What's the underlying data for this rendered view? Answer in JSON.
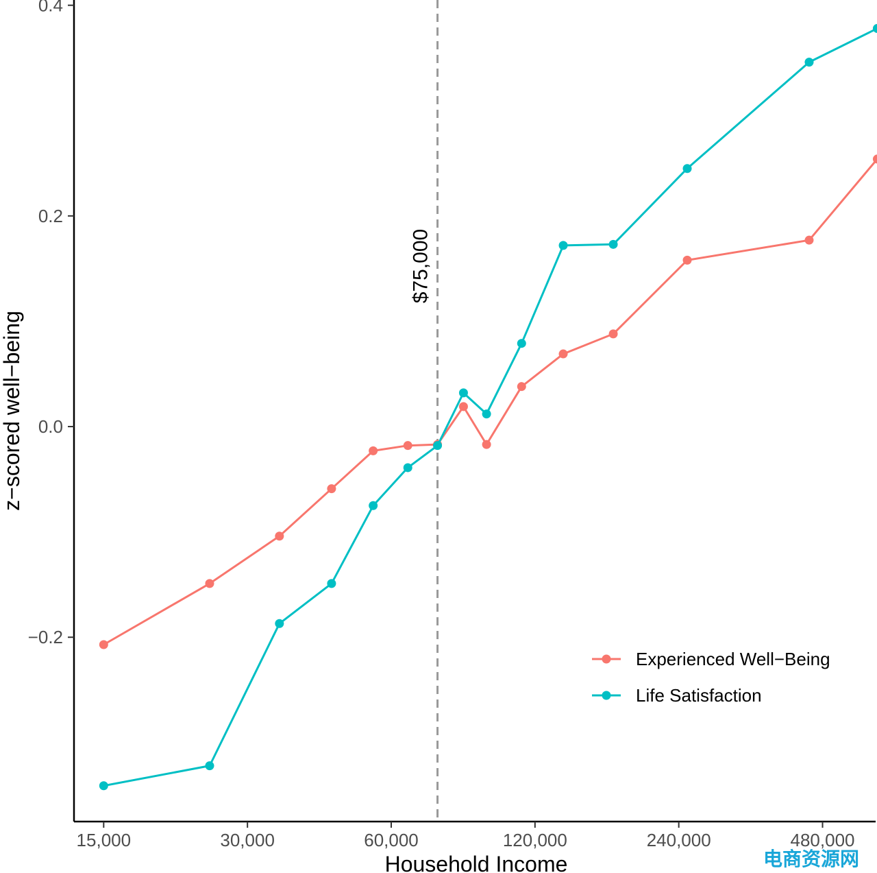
{
  "chart_data": {
    "type": "line",
    "xlabel": "Household Income",
    "ylabel": "z−scored well−being",
    "x_scale": "log2",
    "xlim": [
      13000,
      620000
    ],
    "ylim": [
      -0.375,
      0.405
    ],
    "x_ticks": [
      {
        "value": 15000,
        "label": "15,000"
      },
      {
        "value": 30000,
        "label": "30,000"
      },
      {
        "value": 60000,
        "label": "60,000"
      },
      {
        "value": 120000,
        "label": "120,000"
      },
      {
        "value": 240000,
        "label": "240,000"
      },
      {
        "value": 480000,
        "label": "480,000"
      }
    ],
    "y_ticks": [
      {
        "value": -0.2,
        "label": "−0.2"
      },
      {
        "value": 0.0,
        "label": "0.0"
      },
      {
        "value": 0.2,
        "label": "0.2"
      },
      {
        "value": 0.4,
        "label": "0.4"
      }
    ],
    "grid": false,
    "legend_position": "bottom-right",
    "series": [
      {
        "name": "Experienced Well−Being",
        "color": "#F8766D",
        "x": [
          15000,
          25000,
          35000,
          45000,
          55000,
          65000,
          75000,
          85000,
          95000,
          112500,
          137500,
          175000,
          250000,
          450000,
          625000
        ],
        "y": [
          -0.207,
          -0.149,
          -0.104,
          -0.059,
          -0.023,
          -0.018,
          -0.017,
          0.019,
          -0.017,
          0.038,
          0.069,
          0.088,
          0.158,
          0.177,
          0.254
        ]
      },
      {
        "name": "Life Satisfaction",
        "color": "#00BFC4",
        "x": [
          15000,
          25000,
          35000,
          45000,
          55000,
          65000,
          75000,
          85000,
          95000,
          112500,
          137500,
          175000,
          250000,
          450000,
          625000
        ],
        "y": [
          -0.341,
          -0.322,
          -0.187,
          -0.149,
          -0.075,
          -0.039,
          -0.018,
          0.032,
          0.012,
          0.079,
          0.172,
          0.173,
          0.245,
          0.346,
          0.378
        ]
      }
    ],
    "annotations": [
      {
        "type": "vline",
        "x": 75000,
        "label": "$75,000",
        "color": "#999999",
        "style": "dashed"
      }
    ]
  },
  "watermark": "电商资源网"
}
